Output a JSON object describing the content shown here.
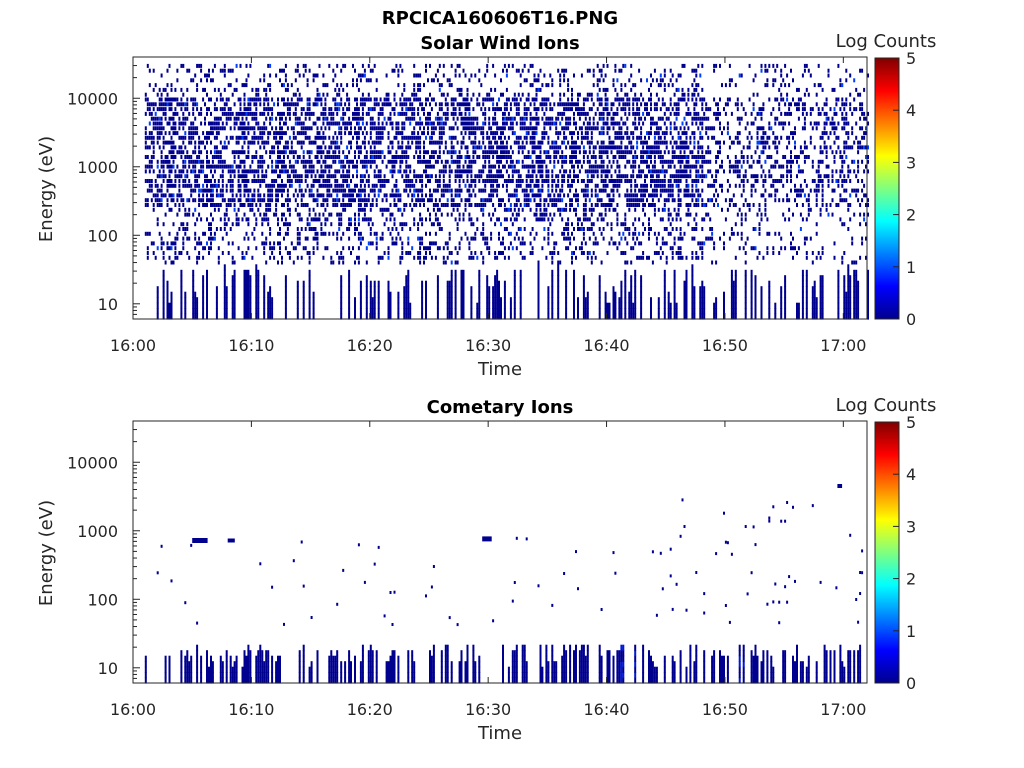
{
  "figure": {
    "title": "RPCICA160606T16.PNG"
  },
  "colors": {
    "axis": "#262626",
    "dark_blue": "#00008f",
    "mid_blue": "#0018d8",
    "blue": "#0040ff"
  },
  "chart_data": [
    {
      "type": "heatmap",
      "title": "Solar Wind Ions",
      "xlabel": "Time",
      "ylabel": "Energy (eV)",
      "x_ticks": [
        "16:00",
        "16:10",
        "16:20",
        "16:30",
        "16:40",
        "16:50",
        "17:00"
      ],
      "y_ticks": [
        "10",
        "100",
        "1000",
        "10000"
      ],
      "y_scale": "log",
      "xlim": [
        "16:00",
        "17:02"
      ],
      "ylim": [
        6,
        40000
      ],
      "colorbar": {
        "label": "Log Counts",
        "range": [
          0,
          5
        ],
        "ticks": [
          "0",
          "1",
          "2",
          "3",
          "4",
          "5"
        ],
        "colormap": "jet"
      },
      "description_of_values": "Dense low-count (log 0–0.5) coverage across entire time window from ~16:01 to 17:02; strongest occupancy between ~300 eV and ~10000 eV; sporadic patches down to ~6 eV",
      "energy_band_eV": [
        6,
        30000
      ],
      "dominant_value_log_counts": 0.2
    },
    {
      "type": "heatmap",
      "title": "Cometary Ions",
      "xlabel": "Time",
      "ylabel": "Energy (eV)",
      "x_ticks": [
        "16:00",
        "16:10",
        "16:20",
        "16:30",
        "16:40",
        "16:50",
        "17:00"
      ],
      "y_ticks": [
        "10",
        "100",
        "1000",
        "10000"
      ],
      "y_scale": "log",
      "xlim": [
        "16:00",
        "17:02"
      ],
      "ylim": [
        6,
        40000
      ],
      "colorbar": {
        "label": "Log Counts",
        "range": [
          0,
          5
        ],
        "ticks": [
          "0",
          "1",
          "2",
          "3",
          "4",
          "5"
        ],
        "colormap": "jet"
      },
      "description_of_values": "Mostly low-energy (6–30 eV) vertical stripes across window, sparse points at 50–800 eV, a few points up to ~4500 eV after 16:47; a few slightly brighter pixels (log ~0.5–1) near 16:42 and 16:51",
      "energy_band_eV": [
        6,
        4500
      ],
      "dominant_value_log_counts": 0.2
    }
  ]
}
